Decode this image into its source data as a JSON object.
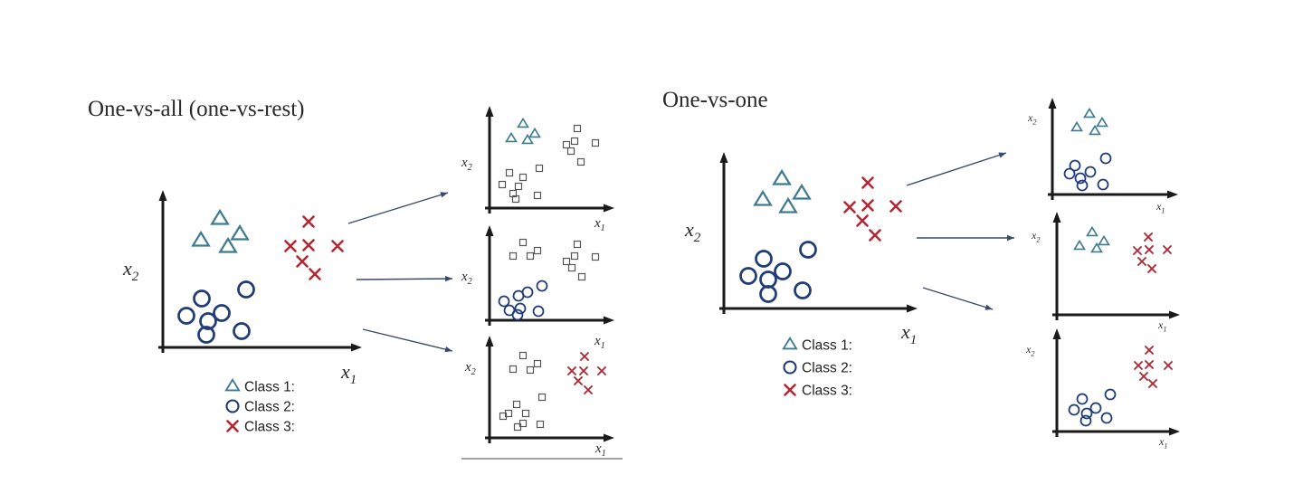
{
  "colors": {
    "triangle": "#3b7a8f",
    "circle": "#1f3b7a",
    "cross": "#b02a36",
    "square": "#555555",
    "axis": "#1a1a1a",
    "arrow": "#3a4a6a"
  },
  "panels": {
    "ova": {
      "title": "One-vs-all (one-vs-rest)"
    },
    "ovo": {
      "title": "One-vs-one"
    }
  },
  "axis_labels": {
    "x": "x",
    "y": "x",
    "sub": "1",
    "sub_y": "2"
  },
  "legend": [
    {
      "marker": "triangle",
      "label": "Class 1:"
    },
    {
      "marker": "circle",
      "label": "Class 2:"
    },
    {
      "marker": "cross",
      "label": "Class 3:"
    }
  ],
  "marker_names": {
    "triangle": "class-1-triangle-icon",
    "circle": "class-2-circle-icon",
    "cross": "class-3-cross-icon",
    "square": "rest-square-icon"
  }
}
